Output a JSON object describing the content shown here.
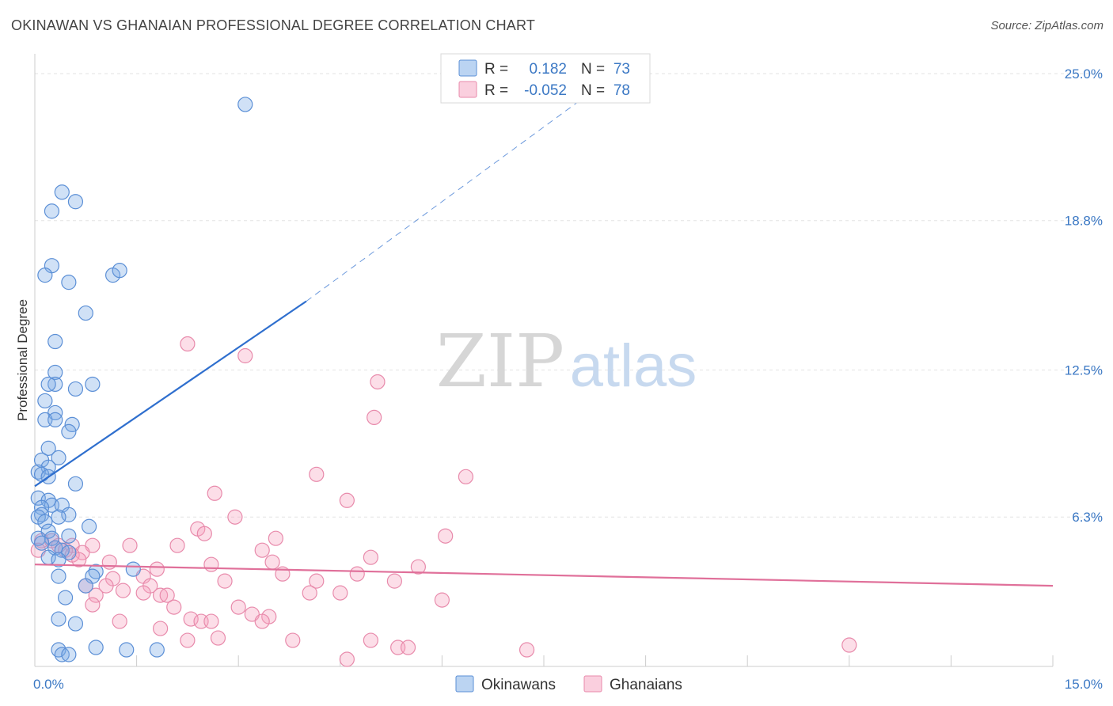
{
  "title": "OKINAWAN VS GHANAIAN PROFESSIONAL DEGREE CORRELATION CHART",
  "source": "Source: ZipAtlas.com",
  "watermark": {
    "zip": "ZIP",
    "atlas": "atlas"
  },
  "colors": {
    "okinawan_fill": "rgba(120,170,230,0.35)",
    "okinawan_stroke": "#5b8fd6",
    "okinawan_line": "#2f6fce",
    "ghanaian_fill": "rgba(245,160,190,0.35)",
    "ghanaian_stroke": "#e88aab",
    "ghanaian_line": "#e0709a",
    "tick_label": "#3b78c4"
  },
  "legend": {
    "r_label": "R =",
    "n_label": "N =",
    "rows": [
      {
        "r": "0.182",
        "n": "73"
      },
      {
        "r": "-0.052",
        "n": "78"
      }
    ]
  },
  "chart_data": {
    "type": "scatter",
    "title": "OKINAWAN VS GHANAIAN PROFESSIONAL DEGREE CORRELATION CHART",
    "xlabel": "",
    "ylabel": "Professional Degree",
    "xlim": [
      0,
      15
    ],
    "ylim": [
      0,
      25.5
    ],
    "x_tick_labels": [
      {
        "value": 0,
        "label": "0.0%"
      },
      {
        "value": 15,
        "label": "15.0%"
      }
    ],
    "y_tick_labels": [
      {
        "value": 6.3,
        "label": "6.3%"
      },
      {
        "value": 12.5,
        "label": "12.5%"
      },
      {
        "value": 18.8,
        "label": "18.8%"
      },
      {
        "value": 25.0,
        "label": "25.0%"
      }
    ],
    "grid": true,
    "legend_position": "top-center",
    "series": [
      {
        "name": "Okinawans",
        "points": [
          [
            3.1,
            23.7
          ],
          [
            0.4,
            20.0
          ],
          [
            0.6,
            19.6
          ],
          [
            0.25,
            19.2
          ],
          [
            0.25,
            16.9
          ],
          [
            0.15,
            16.5
          ],
          [
            0.5,
            16.2
          ],
          [
            1.15,
            16.5
          ],
          [
            1.25,
            16.7
          ],
          [
            0.75,
            14.9
          ],
          [
            0.3,
            13.7
          ],
          [
            0.3,
            12.4
          ],
          [
            0.3,
            11.9
          ],
          [
            0.2,
            11.9
          ],
          [
            0.6,
            11.7
          ],
          [
            0.85,
            11.9
          ],
          [
            0.15,
            11.2
          ],
          [
            0.3,
            10.7
          ],
          [
            0.15,
            10.4
          ],
          [
            0.3,
            10.4
          ],
          [
            0.55,
            10.2
          ],
          [
            0.5,
            9.9
          ],
          [
            0.2,
            9.2
          ],
          [
            0.35,
            8.8
          ],
          [
            0.1,
            8.7
          ],
          [
            0.2,
            8.4
          ],
          [
            0.05,
            8.2
          ],
          [
            0.1,
            8.1
          ],
          [
            0.2,
            8.0
          ],
          [
            0.6,
            7.7
          ],
          [
            0.05,
            7.1
          ],
          [
            0.2,
            7.0
          ],
          [
            0.25,
            6.8
          ],
          [
            0.4,
            6.8
          ],
          [
            0.1,
            6.7
          ],
          [
            0.1,
            6.4
          ],
          [
            0.05,
            6.3
          ],
          [
            0.15,
            6.1
          ],
          [
            0.5,
            6.4
          ],
          [
            0.35,
            6.3
          ],
          [
            0.8,
            5.9
          ],
          [
            0.2,
            5.7
          ],
          [
            0.05,
            5.4
          ],
          [
            0.25,
            5.4
          ],
          [
            0.5,
            5.5
          ],
          [
            0.1,
            5.2
          ],
          [
            0.3,
            5.0
          ],
          [
            0.4,
            4.9
          ],
          [
            0.5,
            4.8
          ],
          [
            0.2,
            4.6
          ],
          [
            0.35,
            4.5
          ],
          [
            0.9,
            4.0
          ],
          [
            0.85,
            3.8
          ],
          [
            0.35,
            3.8
          ],
          [
            0.75,
            3.4
          ],
          [
            1.45,
            4.1
          ],
          [
            0.45,
            2.9
          ],
          [
            0.35,
            2.0
          ],
          [
            0.6,
            1.8
          ],
          [
            1.8,
            0.7
          ],
          [
            0.35,
            0.7
          ],
          [
            0.4,
            0.5
          ],
          [
            0.5,
            0.5
          ],
          [
            0.9,
            0.8
          ],
          [
            1.35,
            0.7
          ]
        ]
      },
      {
        "name": "Ghanaians",
        "points": [
          [
            2.25,
            13.6
          ],
          [
            3.1,
            13.1
          ],
          [
            5.05,
            12.0
          ],
          [
            5.0,
            10.5
          ],
          [
            4.15,
            8.1
          ],
          [
            6.35,
            8.0
          ],
          [
            2.65,
            7.3
          ],
          [
            4.6,
            7.0
          ],
          [
            2.95,
            6.3
          ],
          [
            2.4,
            5.8
          ],
          [
            2.5,
            5.6
          ],
          [
            3.55,
            5.4
          ],
          [
            6.05,
            5.5
          ],
          [
            0.1,
            5.3
          ],
          [
            0.25,
            5.3
          ],
          [
            0.35,
            5.1
          ],
          [
            0.55,
            5.1
          ],
          [
            0.85,
            5.1
          ],
          [
            1.4,
            5.1
          ],
          [
            2.1,
            5.1
          ],
          [
            3.35,
            4.9
          ],
          [
            0.05,
            4.9
          ],
          [
            0.45,
            4.9
          ],
          [
            0.7,
            4.8
          ],
          [
            0.55,
            4.7
          ],
          [
            0.65,
            4.5
          ],
          [
            1.1,
            4.4
          ],
          [
            4.95,
            4.6
          ],
          [
            3.5,
            4.4
          ],
          [
            2.6,
            4.3
          ],
          [
            5.65,
            4.2
          ],
          [
            1.8,
            4.1
          ],
          [
            1.6,
            3.8
          ],
          [
            3.65,
            3.9
          ],
          [
            4.75,
            3.9
          ],
          [
            1.15,
            3.7
          ],
          [
            2.8,
            3.6
          ],
          [
            4.15,
            3.6
          ],
          [
            5.3,
            3.6
          ],
          [
            1.7,
            3.4
          ],
          [
            0.75,
            3.4
          ],
          [
            1.05,
            3.4
          ],
          [
            1.3,
            3.2
          ],
          [
            1.6,
            3.1
          ],
          [
            0.9,
            3.0
          ],
          [
            4.05,
            3.1
          ],
          [
            1.85,
            3.0
          ],
          [
            1.95,
            3.0
          ],
          [
            4.5,
            3.1
          ],
          [
            6.0,
            2.8
          ],
          [
            0.85,
            2.6
          ],
          [
            2.05,
            2.5
          ],
          [
            3.0,
            2.5
          ],
          [
            3.2,
            2.2
          ],
          [
            3.45,
            2.1
          ],
          [
            1.25,
            1.9
          ],
          [
            2.3,
            2.0
          ],
          [
            2.45,
            1.9
          ],
          [
            2.6,
            1.9
          ],
          [
            1.85,
            1.6
          ],
          [
            3.35,
            1.9
          ],
          [
            2.7,
            1.2
          ],
          [
            2.25,
            1.1
          ],
          [
            3.8,
            1.1
          ],
          [
            4.95,
            1.1
          ],
          [
            5.35,
            0.8
          ],
          [
            5.5,
            0.8
          ],
          [
            7.25,
            0.7
          ],
          [
            12.0,
            0.9
          ],
          [
            4.6,
            0.3
          ]
        ]
      }
    ],
    "trend_lines": [
      {
        "series": "Okinawans",
        "x_solid": [
          0,
          4.0
        ],
        "y_solid": [
          7.6,
          15.4
        ],
        "x_dashed": [
          4.0,
          8.0
        ],
        "y_dashed": [
          15.4,
          23.8
        ]
      },
      {
        "series": "Ghanaians",
        "x": [
          0,
          15
        ],
        "y": [
          4.3,
          3.4
        ]
      }
    ]
  }
}
